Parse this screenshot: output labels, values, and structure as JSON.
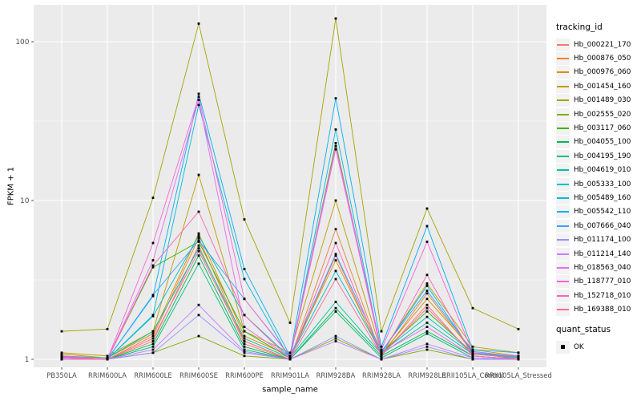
{
  "chart_data": {
    "type": "line",
    "title": "",
    "xlabel": "sample_name",
    "ylabel": "FPKM + 1",
    "y_scale": "log10",
    "y_ticks": [
      1,
      10,
      100
    ],
    "ylim": [
      1,
      170
    ],
    "grid": "on",
    "legend_position": "right",
    "legend_title": "tracking_id",
    "point_shape": "filled-square",
    "point_color": "#000000",
    "panel_background": "#EBEBEB",
    "x_categories": [
      "PB350LA",
      "RRIM600LA",
      "RRIM600LE",
      "RRIM600SE",
      "RRIM600PE",
      "RRIM901LA",
      "RRIM928BA",
      "RRIM928LA",
      "RRIM928LE",
      "RRII105LA_Control",
      "RRII105LA_Stressed"
    ],
    "series": [
      {
        "name": "Hb_000221_170",
        "color": "#F8766D",
        "values": [
          1.02,
          1.0,
          1.3,
          5.2,
          1.25,
          1.0,
          4.5,
          1.05,
          2.2,
          1.05,
          1.0
        ]
      },
      {
        "name": "Hb_000876_050",
        "color": "#EA8331",
        "values": [
          1.05,
          1.0,
          1.4,
          5.8,
          1.3,
          1.0,
          6.6,
          1.05,
          2.6,
          1.1,
          1.0
        ]
      },
      {
        "name": "Hb_000976_060",
        "color": "#D89000",
        "values": [
          1.08,
          1.02,
          1.45,
          6.2,
          1.4,
          1.05,
          4.2,
          1.08,
          2.4,
          1.15,
          1.05
        ]
      },
      {
        "name": "Hb_001454_160",
        "color": "#C09B00",
        "values": [
          1.1,
          1.05,
          1.5,
          14.5,
          1.5,
          1.1,
          10.0,
          1.1,
          3.0,
          1.2,
          1.1
        ]
      },
      {
        "name": "Hb_001489_030",
        "color": "#A3A500",
        "values": [
          1.5,
          1.55,
          10.4,
          130,
          7.6,
          1.7,
          140,
          1.5,
          8.9,
          2.1,
          1.55
        ]
      },
      {
        "name": "Hb_002555_020",
        "color": "#7CAE00",
        "values": [
          1.0,
          1.0,
          1.1,
          1.4,
          1.05,
          1.0,
          1.35,
          1.0,
          1.15,
          1.0,
          1.0
        ]
      },
      {
        "name": "Hb_003117_060",
        "color": "#39B600",
        "values": [
          1.02,
          1.0,
          3.8,
          5.5,
          1.5,
          1.02,
          23,
          1.1,
          2.0,
          1.1,
          1.02
        ]
      },
      {
        "name": "Hb_004055_100",
        "color": "#00BB4E",
        "values": [
          1.0,
          1.0,
          1.25,
          4.5,
          1.2,
          1.0,
          2.1,
          1.05,
          1.5,
          1.05,
          1.0
        ]
      },
      {
        "name": "Hb_004195_190",
        "color": "#00BF7D",
        "values": [
          1.0,
          1.0,
          1.2,
          4.0,
          1.15,
          1.0,
          2.0,
          1.02,
          1.45,
          1.02,
          1.0
        ]
      },
      {
        "name": "Hb_004619_010",
        "color": "#00C1A3",
        "values": [
          1.05,
          1.02,
          1.5,
          5.0,
          1.35,
          1.02,
          2.3,
          1.08,
          1.7,
          1.08,
          1.02
        ]
      },
      {
        "name": "Hb_005333_100",
        "color": "#00BFC4",
        "values": [
          1.03,
          1.0,
          1.87,
          6.0,
          1.9,
          1.03,
          3.6,
          1.1,
          1.85,
          1.1,
          1.03
        ]
      },
      {
        "name": "Hb_005489_160",
        "color": "#00BAE0",
        "values": [
          1.0,
          1.0,
          1.9,
          40,
          3.2,
          1.0,
          28,
          1.1,
          2.9,
          1.1,
          1.0
        ]
      },
      {
        "name": "Hb_005542_110",
        "color": "#00B0F6",
        "values": [
          1.05,
          1.0,
          2.5,
          47,
          3.7,
          1.05,
          44,
          1.2,
          6.9,
          1.15,
          1.1
        ]
      },
      {
        "name": "Hb_007666_040",
        "color": "#35A2FF",
        "values": [
          1.04,
          1.0,
          2.54,
          5.6,
          2.4,
          1.04,
          4.6,
          1.12,
          2.7,
          1.12,
          1.04
        ]
      },
      {
        "name": "Hb_011174_100",
        "color": "#9590FF",
        "values": [
          1.0,
          1.0,
          1.1,
          1.9,
          1.1,
          1.0,
          1.4,
          1.0,
          1.2,
          1.0,
          1.0
        ]
      },
      {
        "name": "Hb_011214_140",
        "color": "#C77CFF",
        "values": [
          1.0,
          1.0,
          1.15,
          2.2,
          1.12,
          1.0,
          1.3,
          1.0,
          1.25,
          1.02,
          1.0
        ]
      },
      {
        "name": "Hb_018563_040",
        "color": "#E76BF3",
        "values": [
          1.02,
          1.0,
          4.2,
          43,
          1.6,
          1.02,
          21,
          1.1,
          1.6,
          1.05,
          1.0
        ]
      },
      {
        "name": "Hb_118777_010",
        "color": "#FA62DB",
        "values": [
          1.05,
          1.0,
          5.4,
          45,
          2.4,
          1.05,
          22,
          1.15,
          5.5,
          1.1,
          1.05
        ]
      },
      {
        "name": "Hb_152718_010",
        "color": "#FF62BC",
        "values": [
          1.0,
          1.0,
          3.9,
          8.5,
          1.9,
          1.0,
          5.4,
          1.05,
          3.4,
          1.05,
          1.0
        ]
      },
      {
        "name": "Hb_169388_010",
        "color": "#FF6A98",
        "values": [
          1.03,
          1.0,
          1.35,
          4.8,
          1.3,
          1.0,
          3.2,
          1.06,
          2.1,
          1.08,
          1.02
        ]
      }
    ],
    "quant_legend": {
      "title": "quant_status",
      "items": [
        {
          "label": "OK"
        }
      ]
    }
  }
}
